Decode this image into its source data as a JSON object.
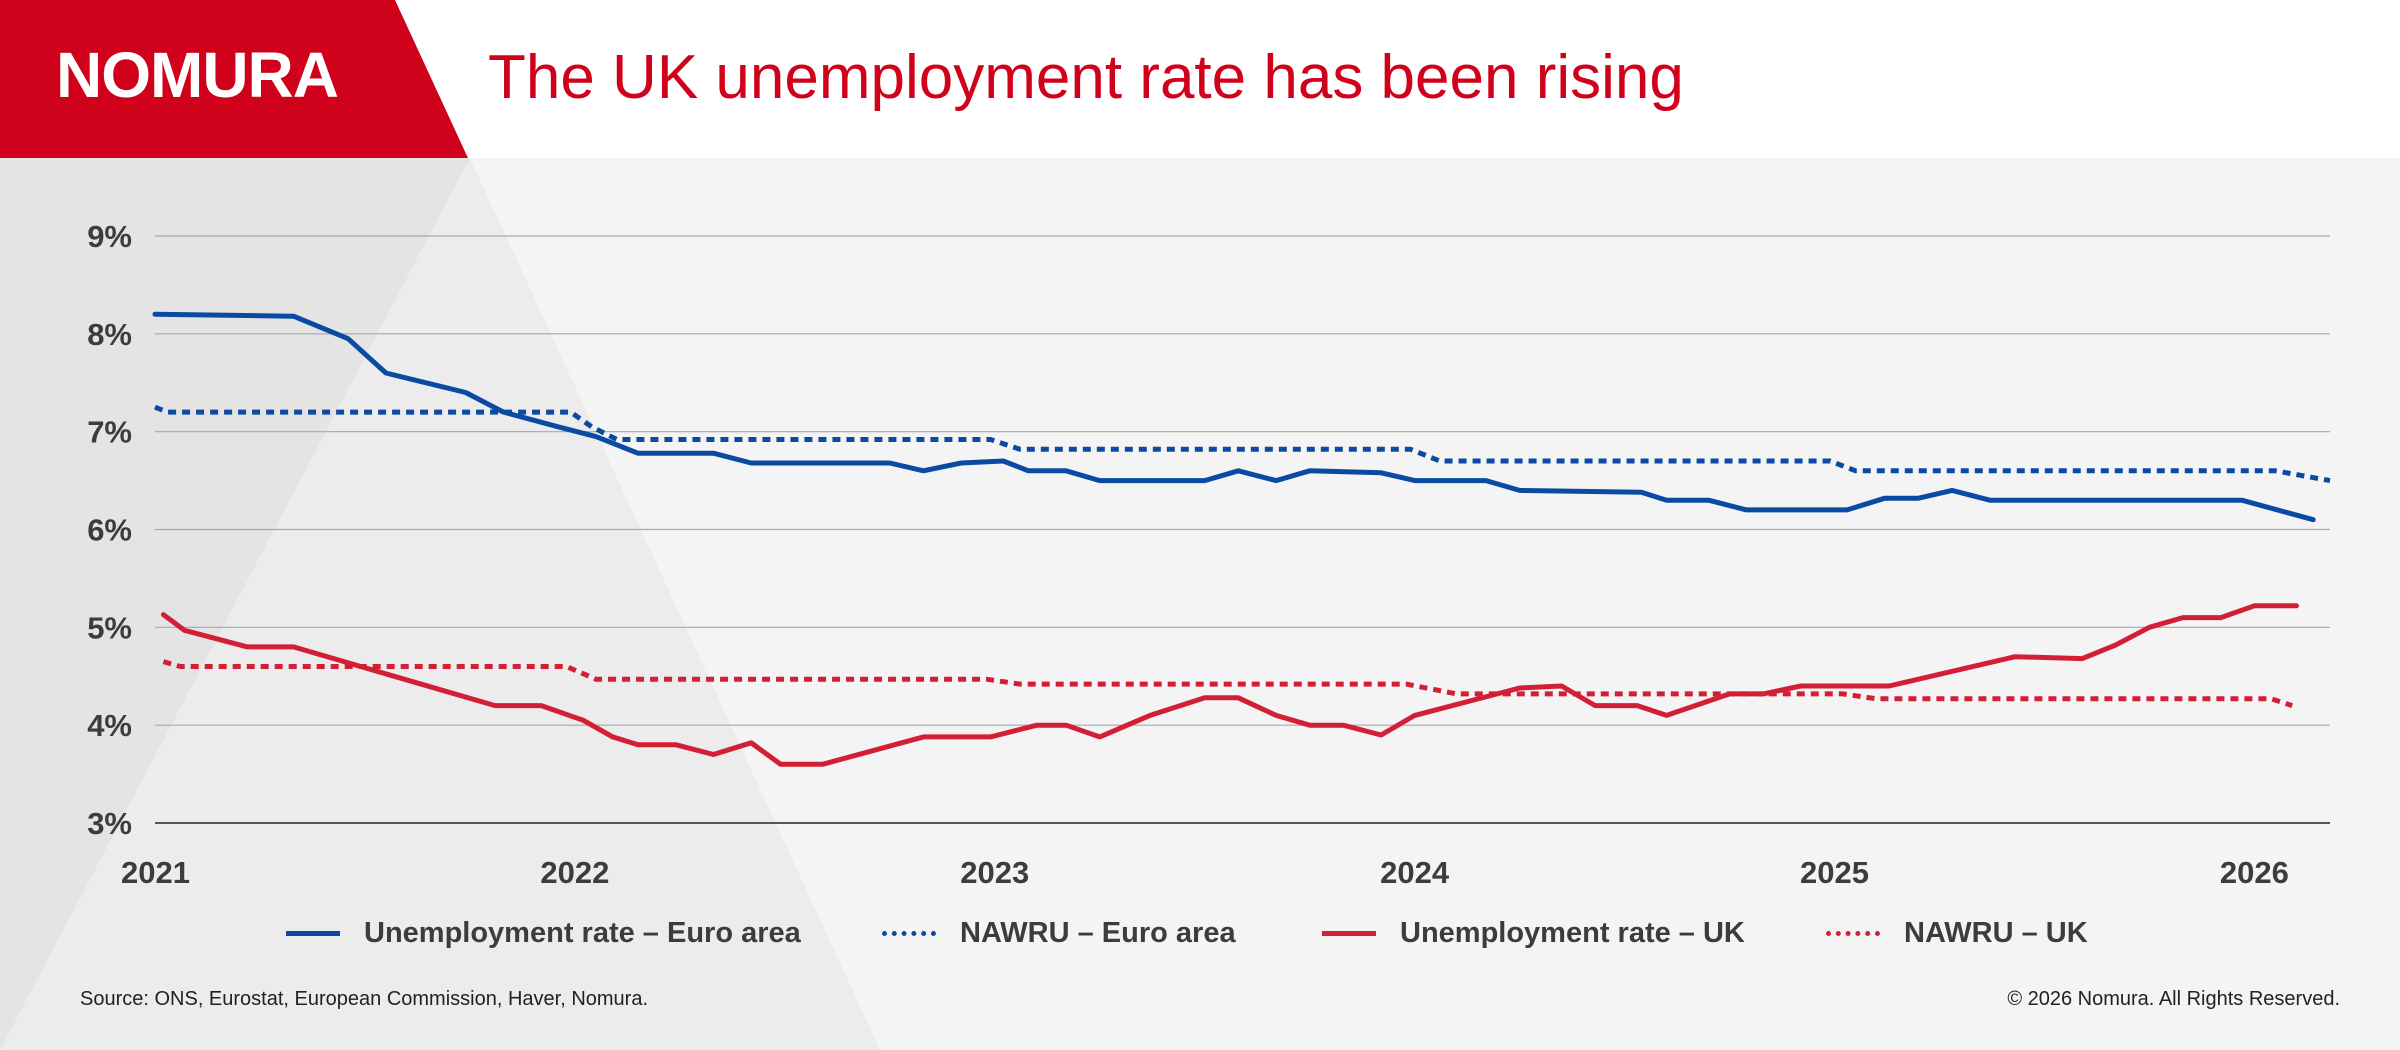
{
  "header": {
    "logo": "NOMURA",
    "title": "The UK unemployment rate has been rising"
  },
  "colors": {
    "brand_red": "#d0021b",
    "euro_blue": "#0b4aa2",
    "uk_red": "#d31f35",
    "gridline": "#a8a8a8",
    "background": "#f4f4f4"
  },
  "legend": [
    {
      "label": "Unemployment rate – Euro area",
      "color": "#0b4aa2",
      "style": "solid"
    },
    {
      "label": "NAWRU – Euro area",
      "color": "#0b4aa2",
      "style": "dotted"
    },
    {
      "label": "Unemployment rate – UK",
      "color": "#d31f35",
      "style": "solid"
    },
    {
      "label": "NAWRU – UK",
      "color": "#d31f35",
      "style": "dotted"
    }
  ],
  "footer": {
    "source": "Source: ONS, Eurostat, European Commission, Haver, Nomura.",
    "copyright": "© 2026 Nomura. All Rights Reserved."
  },
  "chart_data": {
    "type": "line",
    "title": "The UK unemployment rate has been rising",
    "xlabel": "",
    "ylabel": "",
    "xlim": [
      2021.0,
      2026.18
    ],
    "ylim": [
      3,
      9
    ],
    "yticks": [
      3,
      4,
      5,
      6,
      7,
      8,
      9
    ],
    "ytick_labels": [
      "3%",
      "4%",
      "5%",
      "6%",
      "7%",
      "8%",
      "9%"
    ],
    "xticks": [
      2021,
      2022,
      2023,
      2024,
      2025,
      2026
    ],
    "xtick_labels": [
      "2021",
      "2022",
      "2023",
      "2024",
      "2025",
      "2026"
    ],
    "grid": true,
    "legend_position": "bottom",
    "series": [
      {
        "name": "Unemployment rate – Euro area",
        "color": "#0b4aa2",
        "style": "solid",
        "points": [
          [
            2021.0,
            8.2
          ],
          [
            2021.33,
            8.18
          ],
          [
            2021.46,
            7.95
          ],
          [
            2021.55,
            7.6
          ],
          [
            2021.74,
            7.4
          ],
          [
            2021.83,
            7.2
          ],
          [
            2021.96,
            7.05
          ],
          [
            2022.05,
            6.95
          ],
          [
            2022.15,
            6.78
          ],
          [
            2022.33,
            6.78
          ],
          [
            2022.42,
            6.68
          ],
          [
            2022.75,
            6.68
          ],
          [
            2022.83,
            6.6
          ],
          [
            2022.92,
            6.68
          ],
          [
            2023.02,
            6.7
          ],
          [
            2023.08,
            6.6
          ],
          [
            2023.17,
            6.6
          ],
          [
            2023.25,
            6.5
          ],
          [
            2023.5,
            6.5
          ],
          [
            2023.58,
            6.6
          ],
          [
            2023.67,
            6.5
          ],
          [
            2023.75,
            6.6
          ],
          [
            2023.92,
            6.58
          ],
          [
            2024.0,
            6.5
          ],
          [
            2024.17,
            6.5
          ],
          [
            2024.25,
            6.4
          ],
          [
            2024.54,
            6.38
          ],
          [
            2024.6,
            6.3
          ],
          [
            2024.7,
            6.3
          ],
          [
            2024.79,
            6.2
          ],
          [
            2025.03,
            6.2
          ],
          [
            2025.12,
            6.32
          ],
          [
            2025.2,
            6.32
          ],
          [
            2025.28,
            6.4
          ],
          [
            2025.37,
            6.3
          ],
          [
            2025.97,
            6.3
          ],
          [
            2026.14,
            6.1
          ]
        ]
      },
      {
        "name": "NAWRU – Euro area",
        "color": "#0b4aa2",
        "style": "dotted",
        "points": [
          [
            2021.0,
            7.25
          ],
          [
            2021.03,
            7.2
          ],
          [
            2021.99,
            7.2
          ],
          [
            2022.04,
            7.05
          ],
          [
            2022.1,
            6.92
          ],
          [
            2022.99,
            6.92
          ],
          [
            2023.06,
            6.82
          ],
          [
            2023.99,
            6.82
          ],
          [
            2024.06,
            6.7
          ],
          [
            2024.99,
            6.7
          ],
          [
            2025.05,
            6.6
          ],
          [
            2026.05,
            6.6
          ],
          [
            2026.18,
            6.5
          ]
        ]
      },
      {
        "name": "Unemployment rate – UK",
        "color": "#d31f35",
        "style": "solid",
        "points": [
          [
            2021.02,
            5.13
          ],
          [
            2021.07,
            4.97
          ],
          [
            2021.22,
            4.8
          ],
          [
            2021.33,
            4.8
          ],
          [
            2021.49,
            4.6
          ],
          [
            2021.57,
            4.5
          ],
          [
            2021.81,
            4.2
          ],
          [
            2021.92,
            4.2
          ],
          [
            2022.02,
            4.05
          ],
          [
            2022.09,
            3.88
          ],
          [
            2022.15,
            3.8
          ],
          [
            2022.24,
            3.8
          ],
          [
            2022.33,
            3.7
          ],
          [
            2022.42,
            3.82
          ],
          [
            2022.49,
            3.6
          ],
          [
            2022.59,
            3.6
          ],
          [
            2022.83,
            3.88
          ],
          [
            2022.99,
            3.88
          ],
          [
            2023.1,
            4.0
          ],
          [
            2023.17,
            4.0
          ],
          [
            2023.25,
            3.88
          ],
          [
            2023.37,
            4.1
          ],
          [
            2023.5,
            4.28
          ],
          [
            2023.58,
            4.28
          ],
          [
            2023.67,
            4.1
          ],
          [
            2023.75,
            4.0
          ],
          [
            2023.83,
            4.0
          ],
          [
            2023.92,
            3.9
          ],
          [
            2024.0,
            4.1
          ],
          [
            2024.25,
            4.38
          ],
          [
            2024.35,
            4.4
          ],
          [
            2024.43,
            4.2
          ],
          [
            2024.53,
            4.2
          ],
          [
            2024.6,
            4.1
          ],
          [
            2024.75,
            4.32
          ],
          [
            2024.83,
            4.32
          ],
          [
            2024.92,
            4.4
          ],
          [
            2025.13,
            4.4
          ],
          [
            2025.43,
            4.7
          ],
          [
            2025.59,
            4.68
          ],
          [
            2025.67,
            4.82
          ],
          [
            2025.75,
            5.0
          ],
          [
            2025.83,
            5.1
          ],
          [
            2025.92,
            5.1
          ],
          [
            2026.0,
            5.22
          ],
          [
            2026.1,
            5.22
          ]
        ]
      },
      {
        "name": "NAWRU – UK",
        "color": "#d31f35",
        "style": "dotted",
        "points": [
          [
            2021.02,
            4.65
          ],
          [
            2021.06,
            4.6
          ],
          [
            2021.98,
            4.6
          ],
          [
            2022.05,
            4.47
          ],
          [
            2022.98,
            4.47
          ],
          [
            2023.06,
            4.42
          ],
          [
            2023.98,
            4.42
          ],
          [
            2024.1,
            4.32
          ],
          [
            2025.02,
            4.32
          ],
          [
            2025.1,
            4.27
          ],
          [
            2026.04,
            4.27
          ],
          [
            2026.09,
            4.2
          ]
        ]
      }
    ]
  }
}
